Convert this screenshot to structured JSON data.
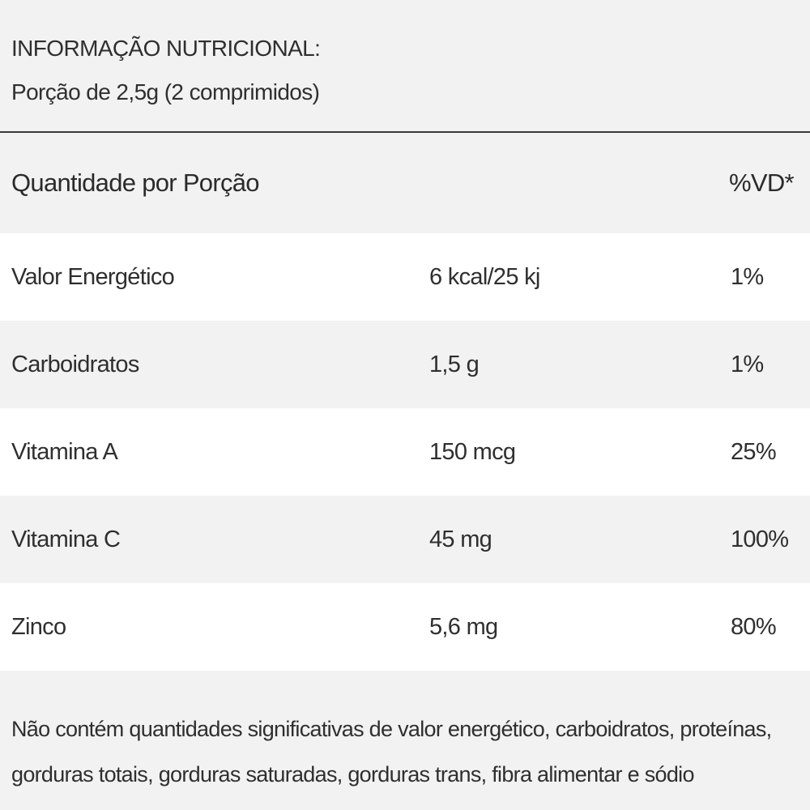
{
  "header": {
    "title": "INFORMAÇÃO NUTRICIONAL:",
    "serving": "Porção de 2,5g (2 comprimidos)"
  },
  "table": {
    "columns": {
      "name": "Quantidade por Porção",
      "vd": "%VD*"
    },
    "rows": [
      {
        "name": "Valor Energético",
        "amount": "6 kcal/25 kj",
        "vd": "1%"
      },
      {
        "name": "Carboidratos",
        "amount": "1,5 g",
        "vd": "1%"
      },
      {
        "name": "Vitamina A",
        "amount": "150 mcg",
        "vd": "25%"
      },
      {
        "name": "Vitamina C",
        "amount": "45 mg",
        "vd": "100%"
      },
      {
        "name": "Zinco",
        "amount": "5,6 mg",
        "vd": "80%"
      }
    ]
  },
  "footer": {
    "note": "Não contém quantidades significativas de valor energético, carboidratos, proteínas, gorduras totais, gorduras saturadas, gorduras trans, fibra alimentar e sódio"
  }
}
